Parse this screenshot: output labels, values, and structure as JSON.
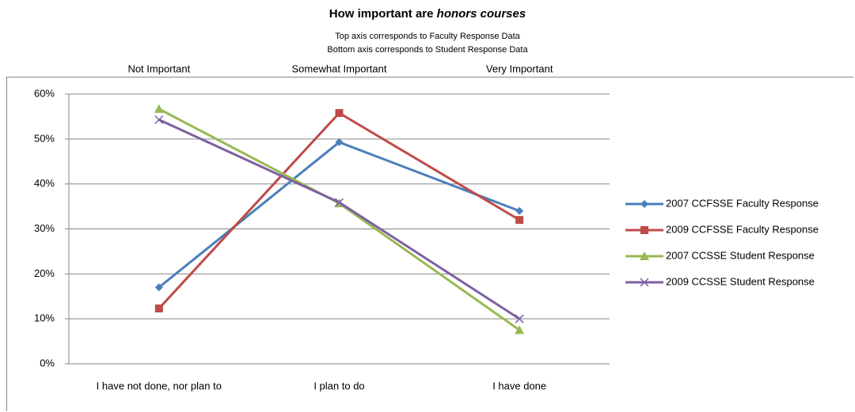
{
  "chart_data": {
    "type": "line",
    "title": "How important are",
    "title_emphasis": "honors courses",
    "subtitle": [
      "Top axis corresponds to Faculty Response Data",
      "Bottom axis corresponds to Student Response Data"
    ],
    "top_categories": [
      "Not Important",
      "Somewhat Important",
      "Very Important"
    ],
    "categories": [
      "I have not done, nor plan to",
      "I plan to do",
      "I have done"
    ],
    "ylim": [
      0,
      60
    ],
    "yticks": [
      {
        "value": 0,
        "label": "0%"
      },
      {
        "value": 10,
        "label": "10%"
      },
      {
        "value": 20,
        "label": "20%"
      },
      {
        "value": 30,
        "label": "30%"
      },
      {
        "value": 40,
        "label": "40%"
      },
      {
        "value": 50,
        "label": "50%"
      },
      {
        "value": 60,
        "label": "60%"
      }
    ],
    "grid": true,
    "legend": "right",
    "series": [
      {
        "name": "2007 CCFSSE Faculty Response",
        "color": "#4a7ebb",
        "marker": "diamond",
        "values": [
          17,
          49.3,
          34
        ]
      },
      {
        "name": "2009 CCFSSE Faculty Response",
        "color": "#be4b48",
        "marker": "square",
        "values": [
          12.3,
          55.8,
          32
        ]
      },
      {
        "name": "2007 CCSSE Student Response",
        "color": "#98b954",
        "marker": "triangle",
        "values": [
          56.7,
          35.7,
          7.5
        ]
      },
      {
        "name": "2009 CCSSE Student Response",
        "color": "#7d60a0",
        "marker": "x",
        "values": [
          54.3,
          35.9,
          10
        ]
      }
    ]
  }
}
